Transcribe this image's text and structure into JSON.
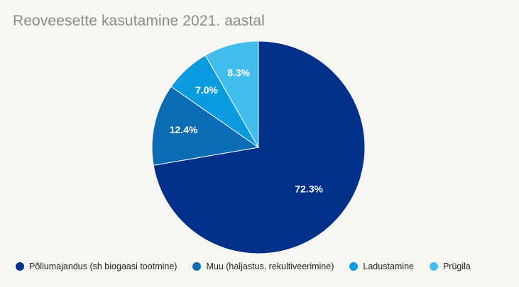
{
  "chart_data": {
    "type": "pie",
    "title": "Reoveesette kasutamine 2021. aastal",
    "categories": [
      "Põllumajandus (sh biogaasi tootmine)",
      "Muu (haljastus. rekultiveerimine)",
      "Ladustamine",
      "Prügila"
    ],
    "values": [
      72.3,
      12.4,
      7.0,
      8.3
    ],
    "labels": [
      "72.3%",
      "12.4%",
      "7.0%",
      "8.3%"
    ],
    "colors": [
      "#00308a",
      "#0b6cb5",
      "#0a9be0",
      "#41bdee"
    ],
    "legend_position": "bottom-left"
  }
}
